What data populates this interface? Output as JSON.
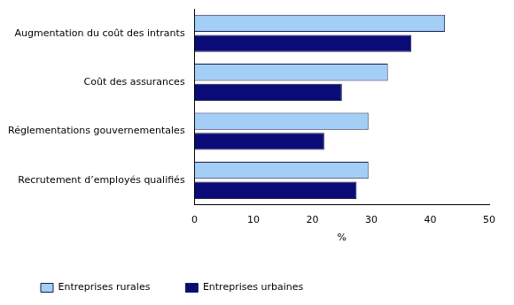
{
  "chart_data": {
    "type": "bar",
    "orientation": "horizontal",
    "categories": [
      "Augmentation du coût des intrants",
      "Coût des assurances",
      "Réglementations gouvernementales",
      "Recrutement d’employés qualifiés"
    ],
    "series": [
      {
        "name": "Entreprises rurales",
        "color": "#a3cff7",
        "values": [
          42.5,
          32.8,
          29.5,
          29.5
        ]
      },
      {
        "name": "Entreprises urbaines",
        "color": "#0b0b78",
        "values": [
          36.8,
          25.0,
          22.0,
          27.5
        ]
      }
    ],
    "xlabel": "%",
    "xlim": [
      0,
      50
    ],
    "xticks": [
      0,
      10,
      20,
      30,
      40,
      50
    ],
    "grid": false,
    "legend": "bottom left"
  }
}
